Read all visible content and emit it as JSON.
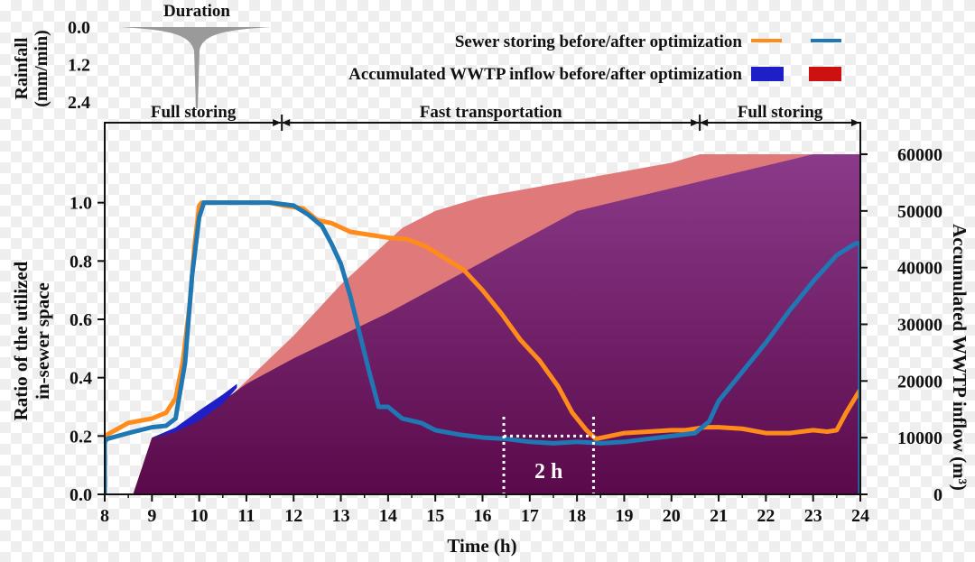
{
  "chart_data": {
    "type": "line",
    "xlabel": "Time (h)",
    "x_ticks": [
      "8",
      "9",
      "10",
      "11",
      "12",
      "13",
      "14",
      "15",
      "16",
      "17",
      "18",
      "19",
      "20",
      "21",
      "22",
      "23",
      "24"
    ],
    "xlim": [
      8,
      24
    ],
    "ylabel_left": [
      "Ratio of the utilized",
      "in-sewer space"
    ],
    "ylim_left": [
      0,
      1.2
    ],
    "y_ticks_left": [
      "0.0",
      "0.2",
      "0.4",
      "0.6",
      "0.8",
      "1.0"
    ],
    "ylabel_right": "Accumulated WWTP inflow (m³)",
    "ylim_right": [
      0,
      60000
    ],
    "y_ticks_right": [
      "0",
      "10000",
      "20000",
      "30000",
      "40000",
      "50000",
      "60000"
    ],
    "rainfall": {
      "ylabel": [
        "Rainfall",
        "(mm/min)"
      ],
      "y_ticks": [
        "0.0",
        "1.2",
        "2.4"
      ],
      "ylim": [
        0,
        2.8
      ],
      "label": "Duration",
      "peak_time": 9.95,
      "peak_value": 2.6,
      "start_time": 9.0,
      "end_time": 11.3
    },
    "phases": [
      {
        "label": "Full storing",
        "start": 8,
        "end": 11.75
      },
      {
        "label": "Fast transportation",
        "start": 11.75,
        "end": 20.6
      },
      {
        "label": "Full storing",
        "start": 20.6,
        "end": 24
      }
    ],
    "legend": {
      "sewer_label": "Sewer storing before/after optimization",
      "inflow_label": "Accumulated WWTP inflow before/after optimization"
    },
    "annotation": {
      "label": "2 h",
      "x_start": 16.45,
      "x_end": 18.35,
      "y": 0.2
    },
    "colors": {
      "sewer_before": "#ff8c1a",
      "sewer_after": "#1f78b4",
      "inflow_before_legend": "#1f1fc8",
      "inflow_after_legend": "#cc1111",
      "inflow_after_area": "#e07a7a",
      "inflow_before_area_top": "#8b3a8a",
      "inflow_before_area_bottom": "#5a0a4a",
      "rainfall": "#9a9a9a"
    },
    "series": [
      {
        "name": "Sewer storing before optimization",
        "x": [
          8.0,
          8.5,
          9.0,
          9.3,
          9.5,
          9.65,
          9.8,
          9.9,
          10.0,
          10.05,
          10.1,
          10.5,
          11.0,
          11.5,
          11.8,
          12.2,
          12.5,
          12.8,
          13.2,
          13.6,
          14.0,
          14.4,
          14.8,
          15.2,
          15.6,
          16.0,
          16.4,
          16.8,
          17.2,
          17.6,
          17.9,
          18.2,
          18.4,
          18.7,
          19.0,
          19.5,
          20.0,
          20.3,
          20.7,
          21.0,
          21.5,
          22.0,
          22.5,
          23.0,
          23.3,
          23.5,
          23.7,
          24.0
        ],
        "values": [
          0.2,
          0.245,
          0.26,
          0.28,
          0.33,
          0.45,
          0.65,
          0.85,
          0.99,
          1.0,
          1.0,
          1.0,
          1.0,
          1.0,
          0.99,
          0.98,
          0.94,
          0.93,
          0.9,
          0.89,
          0.88,
          0.875,
          0.85,
          0.81,
          0.77,
          0.7,
          0.62,
          0.53,
          0.46,
          0.37,
          0.28,
          0.22,
          0.19,
          0.2,
          0.21,
          0.215,
          0.22,
          0.22,
          0.23,
          0.23,
          0.225,
          0.21,
          0.21,
          0.22,
          0.215,
          0.22,
          0.28,
          0.36
        ]
      },
      {
        "name": "Sewer storing after optimization",
        "x": [
          8.0,
          8.0,
          8.05,
          8.5,
          9.0,
          9.3,
          9.5,
          9.7,
          9.85,
          10.0,
          10.1,
          10.2,
          10.5,
          11.0,
          11.5,
          12.0,
          12.3,
          12.6,
          12.8,
          13.0,
          13.2,
          13.4,
          13.6,
          13.8,
          14.0,
          14.3,
          14.7,
          15.0,
          15.5,
          16.0,
          16.5,
          17.0,
          17.5,
          18.0,
          18.5,
          19.0,
          19.5,
          20.0,
          20.5,
          20.8,
          21.0,
          21.5,
          22.0,
          22.5,
          23.0,
          23.5,
          23.9,
          24.0,
          24.0
        ],
        "values": [
          0.0,
          0.18,
          0.19,
          0.21,
          0.23,
          0.235,
          0.26,
          0.45,
          0.75,
          0.95,
          1.0,
          1.0,
          1.0,
          1.0,
          1.0,
          0.99,
          0.96,
          0.92,
          0.86,
          0.79,
          0.68,
          0.55,
          0.42,
          0.3,
          0.3,
          0.26,
          0.245,
          0.22,
          0.205,
          0.195,
          0.19,
          0.18,
          0.175,
          0.18,
          0.175,
          0.18,
          0.19,
          0.2,
          0.21,
          0.25,
          0.32,
          0.42,
          0.52,
          0.63,
          0.73,
          0.82,
          0.86,
          0.86,
          0.0
        ]
      },
      {
        "name": "Accumulated WWTP inflow after optimization",
        "axis": "right",
        "x": [
          8.6,
          9.0,
          9.5,
          10.0,
          10.5,
          11.0,
          12.0,
          13.0,
          14.3,
          15.0,
          16.0,
          17.0,
          18.0,
          19.0,
          20.0,
          20.6,
          24.0
        ],
        "values": [
          0,
          10000,
          11000,
          13000,
          16000,
          20000,
          28000,
          37000,
          47000,
          50000,
          52500,
          54000,
          55500,
          57000,
          58500,
          60000,
          60000
        ]
      },
      {
        "name": "Accumulated WWTP inflow before optimization",
        "axis": "right",
        "x": [
          8.6,
          9.0,
          9.5,
          10.0,
          10.5,
          11.0,
          12.0,
          13.0,
          14.0,
          15.0,
          16.0,
          17.0,
          18.0,
          19.0,
          20.0,
          21.0,
          22.0,
          23.0,
          23.5,
          24.0
        ],
        "values": [
          0,
          10000,
          11500,
          14000,
          16500,
          19500,
          24000,
          28000,
          32000,
          36500,
          41000,
          45500,
          50000,
          52000,
          54000,
          56000,
          58000,
          60000,
          60000,
          60000
        ]
      }
    ]
  }
}
